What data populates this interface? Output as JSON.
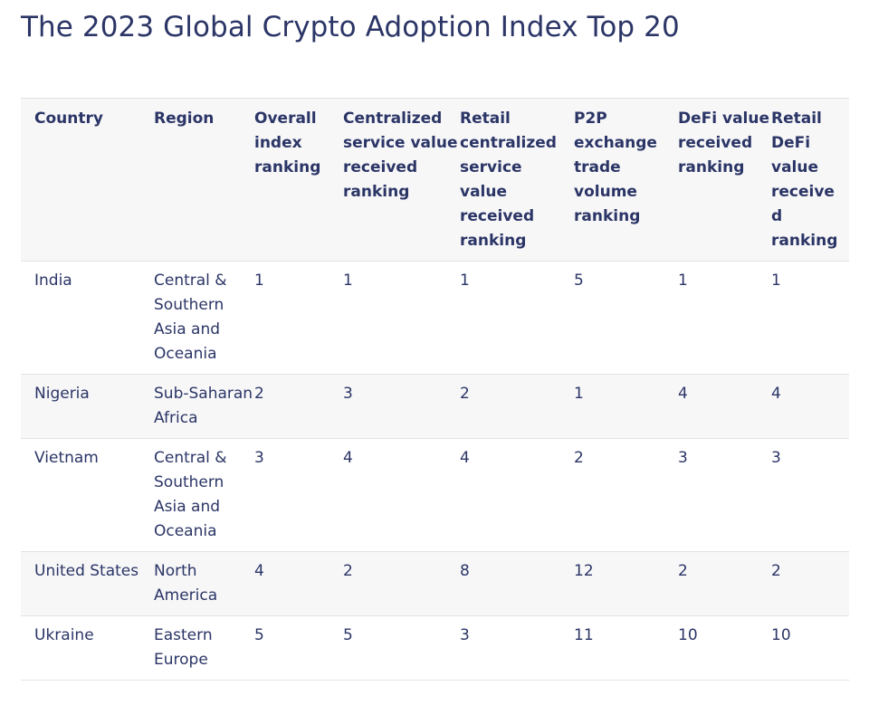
{
  "title": "The 2023 Global Crypto Adoption Index Top 20",
  "table": {
    "headers": [
      "Country",
      "Region",
      "Overall index ranking",
      "Centralized service value received ranking",
      "Retail centralized service value received ranking",
      "P2P exchange trade volume ranking",
      "DeFi value received ranking",
      "Retail DeFi value received ranking"
    ],
    "rows": [
      [
        "India",
        "Central & Southern Asia and Oceania",
        "1",
        "1",
        "1",
        "5",
        "1",
        "1"
      ],
      [
        "Nigeria",
        "Sub-Saharan Africa",
        "2",
        "3",
        "2",
        "1",
        "4",
        "4"
      ],
      [
        "Vietnam",
        "Central & Southern Asia and Oceania",
        "3",
        "4",
        "4",
        "2",
        "3",
        "3"
      ],
      [
        "United States",
        "North America",
        "4",
        "2",
        "8",
        "12",
        "2",
        "2"
      ],
      [
        "Ukraine",
        "Eastern Europe",
        "5",
        "5",
        "3",
        "11",
        "10",
        "10"
      ]
    ]
  }
}
